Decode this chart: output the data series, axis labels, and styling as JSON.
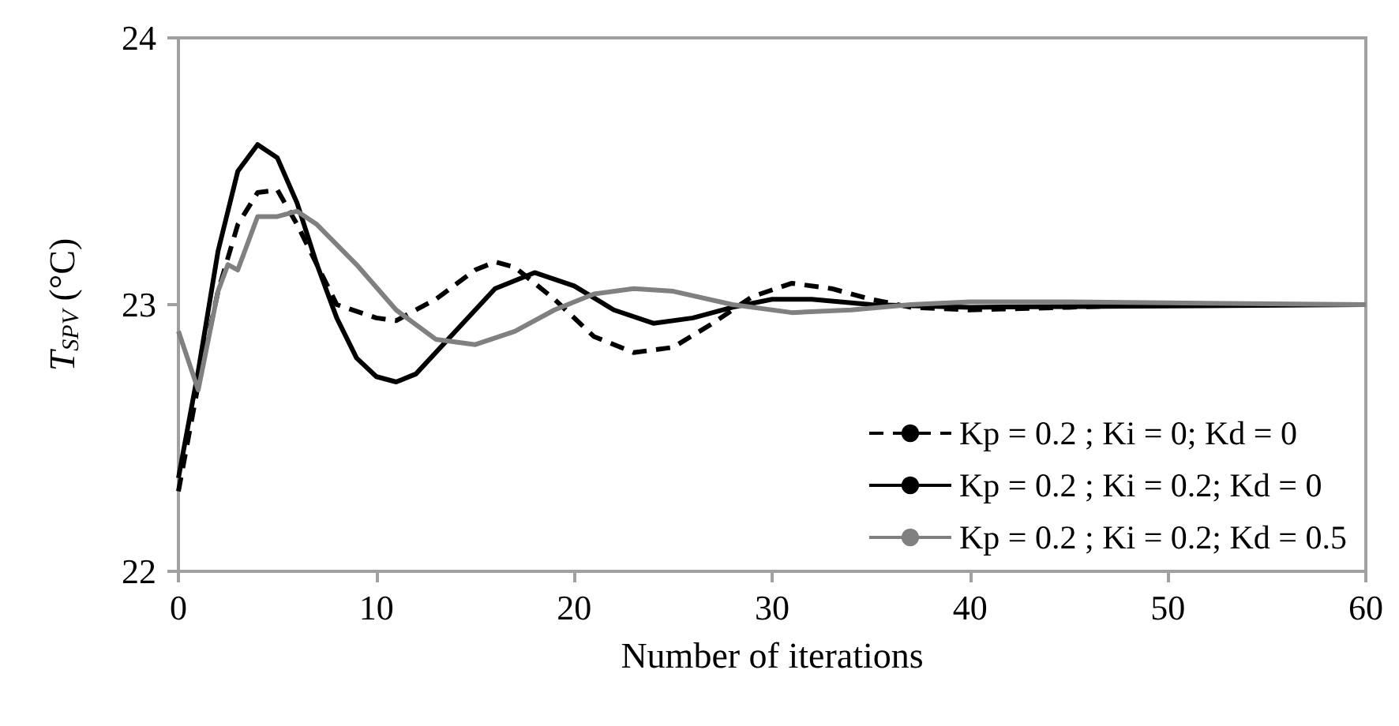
{
  "chart_data": {
    "type": "line",
    "xlabel": "Number of iterations",
    "ylabel": "T$_{SPV}$ (°C)",
    "xlim": [
      0,
      60
    ],
    "xticks": [
      0,
      10,
      20,
      30,
      40,
      50,
      60
    ],
    "ylim": [
      22,
      24
    ],
    "yticks": [
      22,
      23,
      24
    ],
    "grid": false,
    "legend": "bottom right",
    "marker": "none",
    "series": [
      {
        "name": "Kp = 0.2 ; Ki = 0; Kd = 0",
        "color": "#000000",
        "line_style": "dashed",
        "x": [
          0,
          1,
          2,
          3,
          4,
          5,
          6,
          7,
          8,
          10,
          11,
          13,
          15,
          16,
          17,
          19,
          21,
          23,
          25,
          27,
          29,
          31,
          33,
          35,
          37,
          40,
          45,
          50,
          60
        ],
        "values": [
          22.3,
          22.7,
          23.05,
          23.3,
          23.42,
          23.43,
          23.3,
          23.15,
          23.0,
          22.95,
          22.94,
          23.02,
          23.13,
          23.16,
          23.14,
          23.02,
          22.88,
          22.82,
          22.84,
          22.93,
          23.03,
          23.08,
          23.06,
          23.02,
          22.99,
          22.98,
          22.99,
          23.0,
          23.0
        ]
      },
      {
        "name": "Kp = 0.2 ; Ki = 0.2; Kd = 0",
        "color": "#000000",
        "line_style": "solid",
        "x": [
          0,
          1,
          2,
          3,
          4,
          5,
          6,
          7,
          8,
          9,
          10,
          11,
          12,
          14,
          16,
          18,
          20,
          22,
          24,
          26,
          28,
          30,
          32,
          35,
          40,
          60
        ],
        "values": [
          22.35,
          22.75,
          23.2,
          23.5,
          23.6,
          23.55,
          23.38,
          23.15,
          22.95,
          22.8,
          22.73,
          22.71,
          22.74,
          22.9,
          23.06,
          23.12,
          23.07,
          22.98,
          22.93,
          22.95,
          22.99,
          23.02,
          23.02,
          23.0,
          22.99,
          23.0
        ]
      },
      {
        "name": "Kp = 0.2 ; Ki = 0.2; Kd = 0.5",
        "color": "#808080",
        "line_style": "solid",
        "x": [
          0,
          1,
          2,
          2.5,
          3,
          4,
          5,
          6,
          7,
          9,
          11,
          13,
          15,
          17,
          19,
          21,
          23,
          25,
          28,
          31,
          34,
          37,
          40,
          45,
          60
        ],
        "values": [
          22.9,
          22.68,
          23.05,
          23.15,
          23.13,
          23.33,
          23.33,
          23.35,
          23.3,
          23.15,
          22.98,
          22.87,
          22.85,
          22.9,
          22.98,
          23.04,
          23.06,
          23.05,
          23.0,
          22.97,
          22.98,
          23.0,
          23.01,
          23.01,
          23.0
        ]
      }
    ]
  }
}
